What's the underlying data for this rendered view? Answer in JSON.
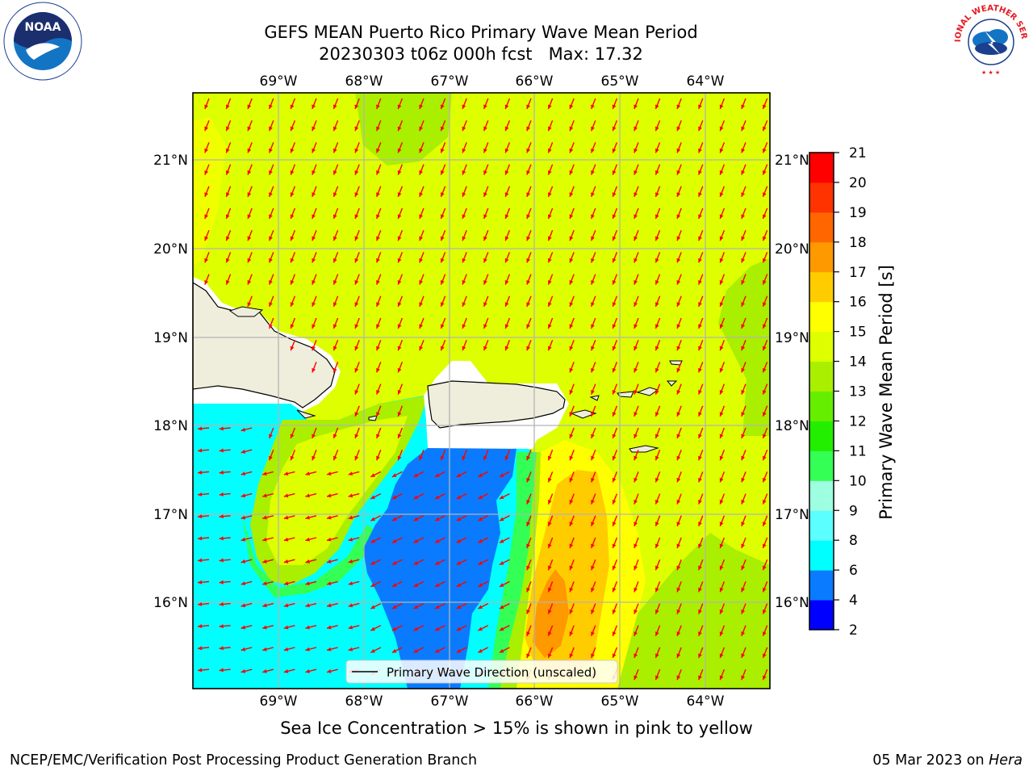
{
  "header": {
    "title_line1": "GEFS MEAN Puerto Rico Primary Wave Mean Period",
    "title_line2": "20230303 t06z 000h fcst   Max: 17.32"
  },
  "map": {
    "lon_ticks": [
      "69°W",
      "68°W",
      "67°W",
      "66°W",
      "65°W",
      "64°W"
    ],
    "lat_ticks": [
      "21°N",
      "20°N",
      "19°N",
      "18°N",
      "17°N",
      "16°N"
    ],
    "legend_label": "Primary Wave Direction (unscaled)",
    "arrow_color": "#ff0000"
  },
  "colorbar": {
    "label": "Primary Wave Mean Period [s]",
    "ticks": [
      "2",
      "4",
      "6",
      "8",
      "9",
      "10",
      "11",
      "12",
      "13",
      "14",
      "15",
      "16",
      "17",
      "18",
      "19",
      "20",
      "21"
    ],
    "colors": [
      "#0000ff",
      "#0a7bff",
      "#00ffff",
      "#5cffff",
      "#9effe0",
      "#33ff55",
      "#22ee00",
      "#66ee00",
      "#aaee00",
      "#ddff00",
      "#ffff00",
      "#ffcc00",
      "#ff9900",
      "#ff6600",
      "#ff3300",
      "#ff0000"
    ]
  },
  "caption": "Sea Ice Concentration > 15% is shown in pink to yellow",
  "footer": {
    "left": "NCEP/EMC/Verification Post Processing Product Generation Branch",
    "right_prefix": "05 Mar 2023 on ",
    "right_host": "Hera"
  },
  "logos": {
    "noaa_text": "NOAA",
    "nws_text": "NATIONAL WEATHER SERVICE"
  }
}
